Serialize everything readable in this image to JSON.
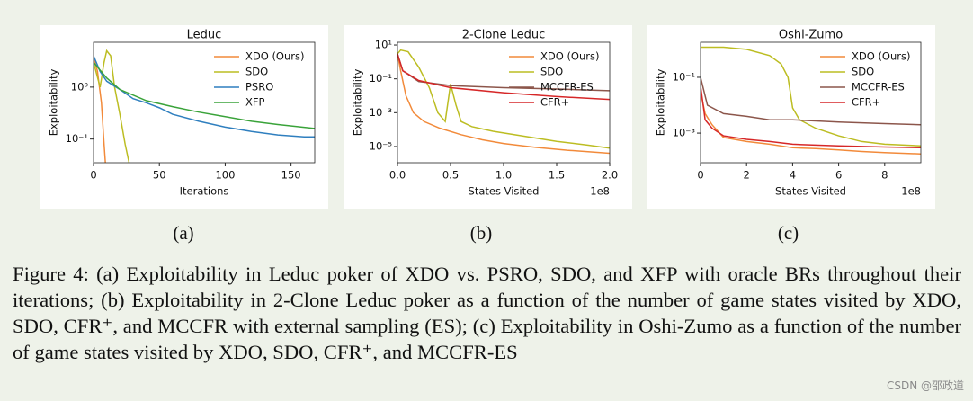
{
  "chart_data": [
    {
      "type": "line",
      "title": "Leduc",
      "label": "(a)",
      "xlabel": "Iterations",
      "ylabel": "Exploitability",
      "log_y": true,
      "legend": "upper right",
      "xlim": [
        0,
        168
      ],
      "xticks": [
        0,
        50,
        100,
        150
      ],
      "ylim": [
        0.035,
        7.3
      ],
      "yticks": [
        {
          "value": 1,
          "label": "10⁰"
        },
        {
          "value": 0.1,
          "label": "10⁻¹"
        }
      ],
      "series": [
        {
          "name": "XDO (Ours)",
          "color": "#f28a3a",
          "x": [
            0,
            3,
            6,
            8,
            9
          ],
          "values": [
            4,
            2,
            0.5,
            0.08,
            0.035
          ]
        },
        {
          "name": "SDO",
          "color": "#bcbd22",
          "x": [
            0,
            5,
            8,
            10,
            13,
            16,
            20,
            24,
            27
          ],
          "values": [
            3,
            1,
            3,
            5,
            4,
            1,
            0.3,
            0.08,
            0.035
          ]
        },
        {
          "name": "PSRO",
          "color": "#2f7fbf",
          "x": [
            0,
            5,
            10,
            20,
            30,
            40,
            50,
            60,
            80,
            100,
            120,
            140,
            160,
            168
          ],
          "values": [
            4,
            2,
            1.3,
            0.9,
            0.6,
            0.5,
            0.4,
            0.3,
            0.22,
            0.17,
            0.14,
            0.12,
            0.11,
            0.11
          ]
        },
        {
          "name": "XFP",
          "color": "#3aa33a",
          "x": [
            0,
            10,
            20,
            40,
            60,
            80,
            100,
            120,
            140,
            168
          ],
          "values": [
            3,
            1.5,
            0.9,
            0.55,
            0.42,
            0.33,
            0.27,
            0.22,
            0.19,
            0.16
          ]
        }
      ]
    },
    {
      "type": "line",
      "title": "2-Clone Leduc",
      "label": "(b)",
      "xlabel": "States Visited",
      "x_offset_label": "1e8",
      "ylabel": "Exploitability",
      "log_y": true,
      "legend": "upper right",
      "xlim": [
        0,
        2.0
      ],
      "xticks": [
        {
          "value": 0,
          "label": "0.0"
        },
        0.5,
        {
          "value": 1,
          "label": "1.0"
        },
        1.5,
        {
          "value": 2,
          "label": "2.0"
        }
      ],
      "ylim": [
        1.1e-06,
        14.5
      ],
      "yticks": [
        {
          "value": 10,
          "label": "10¹"
        },
        {
          "value": 0.1,
          "label": "10⁻¹"
        },
        {
          "value": 0.001,
          "label": "10⁻³"
        },
        {
          "value": 1e-05,
          "label": "10⁻⁵"
        }
      ],
      "series": [
        {
          "name": "XDO (Ours)",
          "color": "#f28a3a",
          "x": [
            0,
            0.03,
            0.08,
            0.15,
            0.25,
            0.4,
            0.6,
            0.8,
            1.0,
            1.3,
            1.6,
            2.0
          ],
          "values": [
            3,
            0.3,
            0.01,
            0.001,
            0.0003,
            0.00012,
            5e-05,
            2.5e-05,
            1.5e-05,
            9e-06,
            6e-06,
            4e-06
          ]
        },
        {
          "name": "SDO",
          "color": "#bcbd22",
          "x": [
            0,
            0.03,
            0.1,
            0.2,
            0.3,
            0.38,
            0.45,
            0.5,
            0.55,
            0.6,
            0.7,
            0.9,
            1.2,
            1.5,
            1.8,
            2.0
          ],
          "values": [
            3,
            5,
            4,
            0.5,
            0.03,
            0.001,
            0.0003,
            0.05,
            0.003,
            0.0003,
            0.00015,
            8e-05,
            4e-05,
            2e-05,
            1.2e-05,
            8e-06
          ]
        },
        {
          "name": "MCCFR-ES",
          "color": "#8c564b",
          "x": [
            0,
            0.05,
            0.2,
            0.5,
            1.0,
            1.5,
            2.0
          ],
          "values": [
            3,
            0.3,
            0.07,
            0.04,
            0.03,
            0.025,
            0.02
          ]
        },
        {
          "name": "CFR+",
          "color": "#d62728",
          "x": [
            0,
            0.05,
            0.2,
            0.5,
            1.0,
            1.5,
            2.0
          ],
          "values": [
            3,
            0.3,
            0.08,
            0.03,
            0.015,
            0.009,
            0.006
          ]
        }
      ]
    },
    {
      "type": "line",
      "title": "Oshi-Zumo",
      "label": "(c)",
      "xlabel": "States Visited",
      "x_offset_label": "1e8",
      "ylabel": "Exploitability",
      "log_y": true,
      "legend": "upper right",
      "xlim": [
        0,
        9.57
      ],
      "xticks": [
        0,
        2,
        4,
        6,
        8
      ],
      "ylim": [
        8.7e-05,
        1.8
      ],
      "yticks": [
        {
          "value": 0.1,
          "label": "10⁻¹"
        },
        {
          "value": 0.001,
          "label": "10⁻³"
        }
      ],
      "series": [
        {
          "name": "XDO (Ours)",
          "color": "#f28a3a",
          "x": [
            0,
            0.2,
            0.5,
            1,
            2,
            3,
            4,
            5,
            6,
            7,
            8,
            9.57
          ],
          "values": [
            0.03,
            0.005,
            0.002,
            0.0007,
            0.0005,
            0.0004,
            0.0003,
            0.00028,
            0.00025,
            0.00022,
            0.0002,
            0.00018
          ]
        },
        {
          "name": "SDO",
          "color": "#bcbd22",
          "x": [
            0,
            0.5,
            1,
            2,
            3,
            3.5,
            3.8,
            4.0,
            4.3,
            5,
            6,
            7,
            8,
            9.57
          ],
          "values": [
            1.2,
            1.2,
            1.2,
            1.0,
            0.6,
            0.3,
            0.1,
            0.008,
            0.003,
            0.0015,
            0.0008,
            0.0005,
            0.0004,
            0.00035
          ]
        },
        {
          "name": "MCCFR-ES",
          "color": "#8c564b",
          "x": [
            0,
            0.3,
            1,
            2,
            3,
            4,
            6,
            8,
            9.57
          ],
          "values": [
            0.1,
            0.01,
            0.005,
            0.004,
            0.003,
            0.003,
            0.0025,
            0.0022,
            0.002
          ]
        },
        {
          "name": "CFR+",
          "color": "#d62728",
          "x": [
            0,
            0.2,
            0.5,
            1,
            2,
            3,
            4,
            6,
            8,
            9.57
          ],
          "values": [
            0.05,
            0.003,
            0.0015,
            0.0008,
            0.0006,
            0.0005,
            0.0004,
            0.00035,
            0.00032,
            0.0003
          ]
        }
      ]
    }
  ],
  "caption": "Figure 4: (a) Exploitability in Leduc poker of XDO vs. PSRO, SDO, and XFP with oracle BRs throughout their iterations; (b) Exploitability in 2-Clone Leduc poker as a function of the number of game states visited by XDO, SDO, CFR⁺, and MCCFR with external sampling (ES); (c) Exploitability in Oshi-Zumo as a function of the number of game states visited by XDO, SDO, CFR⁺, and MCCFR-ES",
  "watermark": "CSDN @邵政道"
}
